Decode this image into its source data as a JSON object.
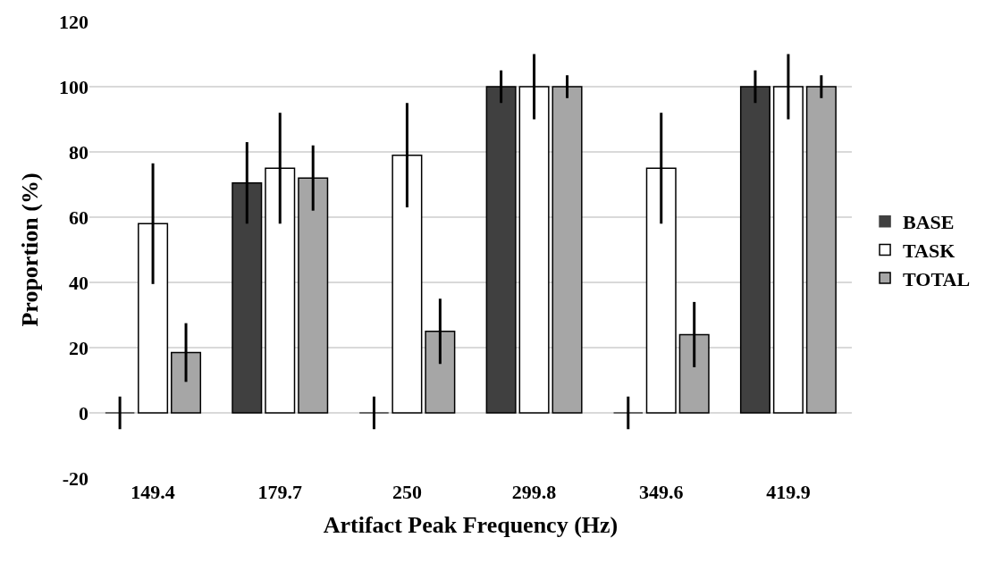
{
  "chart_data": {
    "type": "bar",
    "xlabel": "Artifact Peak Frequency (Hz)",
    "ylabel": "Proportion (%)",
    "categories": [
      "149.4",
      "179.7",
      "250",
      "299.8",
      "349.6",
      "419.9"
    ],
    "series": [
      {
        "name": "BASE",
        "color": "#404040",
        "values": [
          0,
          70.5,
          0,
          100,
          0,
          100
        ],
        "errors": [
          5,
          12.5,
          5,
          5,
          5,
          5
        ]
      },
      {
        "name": "TASK",
        "color": "#ffffff",
        "values": [
          58,
          75,
          79,
          100,
          75,
          100
        ],
        "errors": [
          18.5,
          17,
          16,
          10,
          17,
          10
        ]
      },
      {
        "name": "TOTAL",
        "color": "#a6a6a6",
        "values": [
          18.5,
          72,
          25,
          100,
          24,
          100
        ],
        "errors": [
          9,
          10,
          10,
          3.5,
          10,
          3.5
        ]
      }
    ],
    "ylim": [
      -20,
      120
    ],
    "yticks": [
      -20,
      0,
      20,
      40,
      60,
      80,
      100,
      120
    ],
    "grid": "y",
    "legend": "right"
  }
}
